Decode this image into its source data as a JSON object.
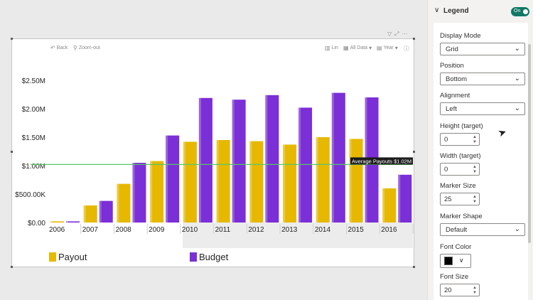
{
  "toolbar": {
    "back_label": "Back",
    "zoom_out_label": "Zoom-out",
    "lin_label": "Lin",
    "all_data_label": "All Data",
    "year_label": "Year",
    "more_label": "···"
  },
  "chart_data": {
    "type": "bar",
    "categories": [
      "2006",
      "2007",
      "2008",
      "2009",
      "2010",
      "2011",
      "2012",
      "2013",
      "2014",
      "2015",
      "2016"
    ],
    "series": [
      {
        "name": "Payout",
        "color": "#e6b800",
        "values": [
          0.02,
          0.3,
          0.68,
          1.08,
          1.42,
          1.45,
          1.43,
          1.37,
          1.5,
          1.47,
          0.6
        ]
      },
      {
        "name": "Budget",
        "color": "#7b2fd6",
        "values": [
          0.02,
          0.38,
          1.05,
          1.53,
          2.19,
          2.16,
          2.24,
          2.02,
          2.28,
          2.2,
          0.84
        ]
      }
    ],
    "y_ticks": [
      0,
      0.5,
      1.0,
      1.5,
      2.0,
      2.5
    ],
    "y_tick_labels": [
      "$0.00",
      "$500.00K",
      "$1.00M",
      "$1.50M",
      "$2.00M",
      "$2.50M"
    ],
    "ylim": [
      0,
      2.5
    ],
    "reference_line": {
      "value": 1.02,
      "label": "Average Payouts $1.02M",
      "color": "#55c86a"
    },
    "legend_position": "bottom-left",
    "title": "",
    "xlabel": "",
    "ylabel": ""
  },
  "legend": {
    "items": [
      {
        "label": "Payout",
        "color": "#e6b800"
      },
      {
        "label": "Budget",
        "color": "#7b2fd6"
      }
    ]
  },
  "pane": {
    "section_title": "Legend",
    "toggle_label": "On",
    "display_mode": {
      "label": "Display Mode",
      "value": "Grid"
    },
    "position": {
      "label": "Position",
      "value": "Bottom"
    },
    "alignment": {
      "label": "Alignment",
      "value": "Left"
    },
    "height": {
      "label": "Height (target)",
      "value": "0"
    },
    "width": {
      "label": "Width (target)",
      "value": "0"
    },
    "marker_size": {
      "label": "Marker Size",
      "value": "25"
    },
    "marker_shape": {
      "label": "Marker Shape",
      "value": "Default"
    },
    "font_color": {
      "label": "Font Color",
      "value": "#000000"
    },
    "font_size": {
      "label": "Font Size",
      "value": "20"
    }
  }
}
